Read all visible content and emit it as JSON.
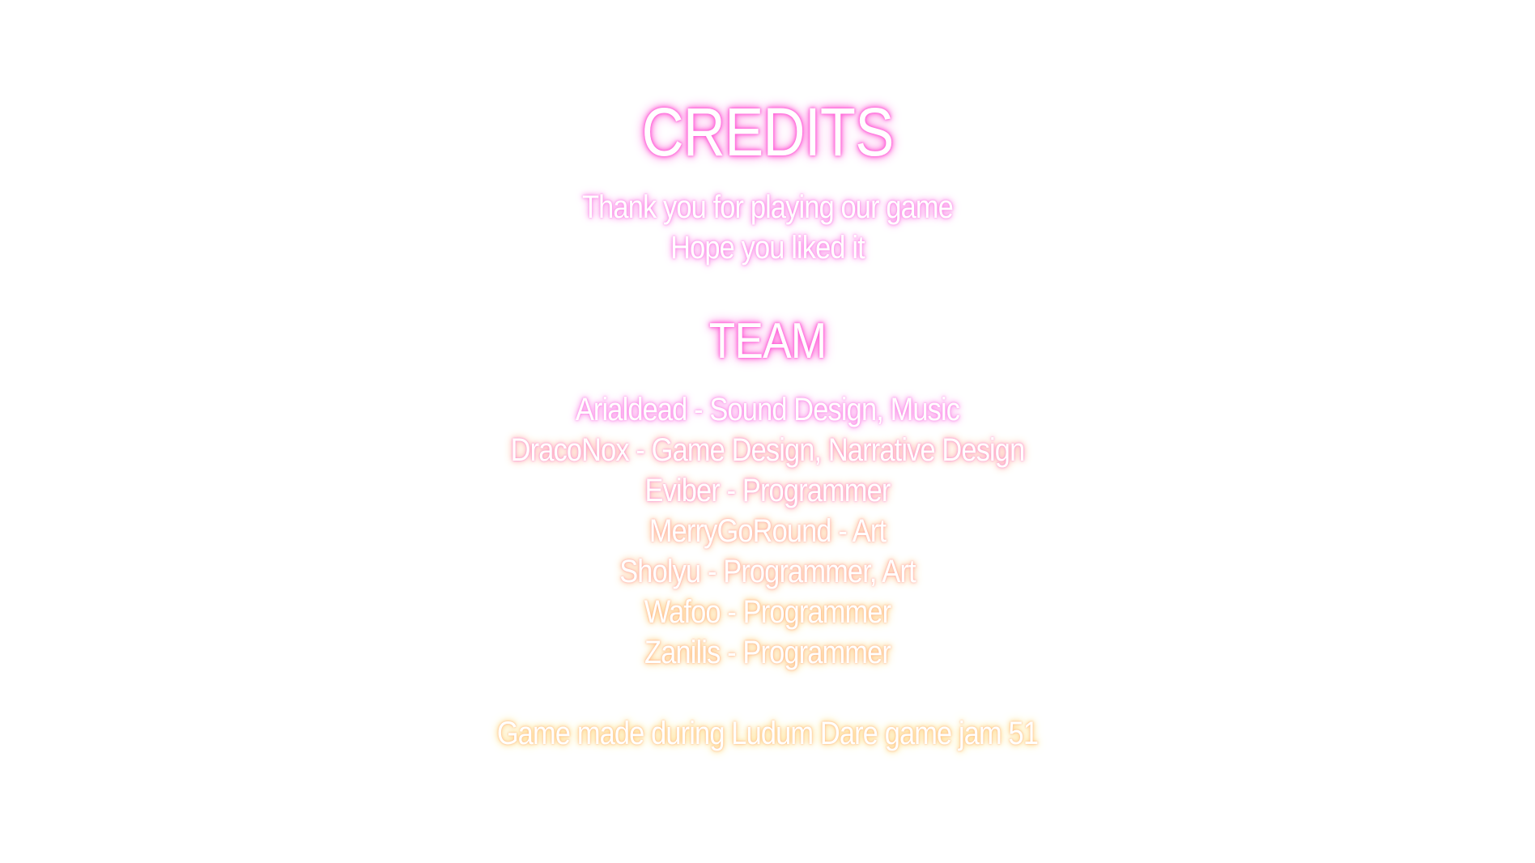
{
  "credits": {
    "title": "CREDITS",
    "thanks_line_1": "Thank you for playing our game",
    "thanks_line_2": "Hope you liked it",
    "team_heading": "TEAM",
    "members": [
      "Arialdead - Sound Design, Music",
      "DracoNox - Game Design, Narrative Design",
      "Eviber - Programmer",
      "MerryGoRound - Art",
      "Sholyu - Programmer, Art",
      "Wafoo - Programmer",
      "Zanilis - Programmer"
    ],
    "footer": "Game made during Ludum Dare game jam 51"
  },
  "colors": {
    "background": "#ffffff",
    "text": "#ffffff",
    "glow_pink": "#ff5fd8",
    "glow_orange": "#ffc17e",
    "glow_gold": "#ffe07a"
  }
}
